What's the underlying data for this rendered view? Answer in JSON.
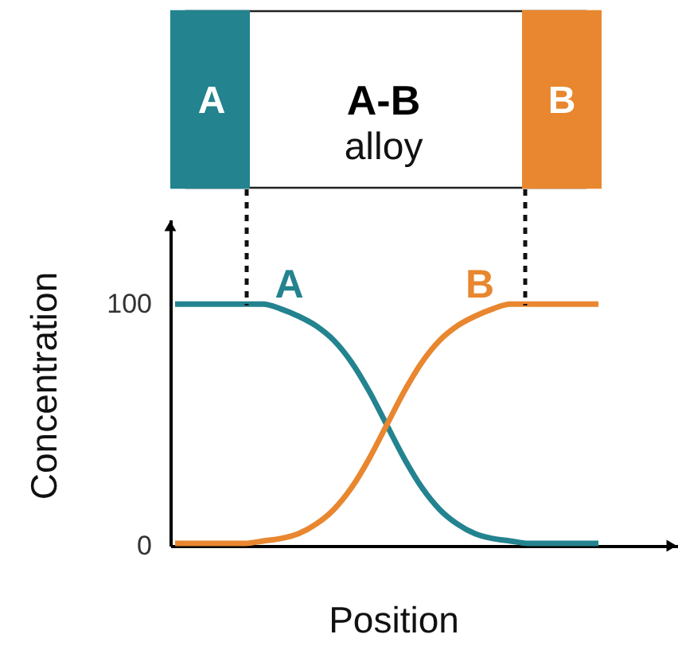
{
  "chart_data": {
    "type": "line",
    "xlabel": "Position",
    "ylabel": "Concentration",
    "categories": [
      null,
      null,
      null,
      null,
      null,
      null,
      null,
      null,
      null,
      null,
      null,
      null,
      null,
      null,
      null,
      null,
      null,
      null,
      null,
      null,
      null,
      null,
      null,
      null,
      null
    ],
    "ylim": [
      0,
      135
    ],
    "yticks": [
      0,
      100
    ],
    "tick_labels": "y",
    "grid": false,
    "legend": false,
    "marker": "none",
    "line_style": "solid",
    "series": [
      {
        "name": "A",
        "color": "#23838f",
        "values": [
          100,
          100,
          100,
          100,
          100,
          100,
          98,
          95,
          91,
          85,
          76,
          64,
          50,
          36,
          24,
          15,
          9,
          5,
          3,
          2,
          1,
          1,
          1,
          1,
          1
        ]
      },
      {
        "name": "B",
        "color": "#e8872f",
        "values": [
          1,
          1,
          1,
          1,
          1,
          2,
          3,
          5,
          9,
          15,
          24,
          36,
          50,
          64,
          76,
          85,
          91,
          95,
          98,
          100,
          100,
          100,
          100,
          100,
          100
        ]
      }
    ],
    "annotations": [
      "A",
      "A-B",
      "alloy",
      "B"
    ]
  }
}
